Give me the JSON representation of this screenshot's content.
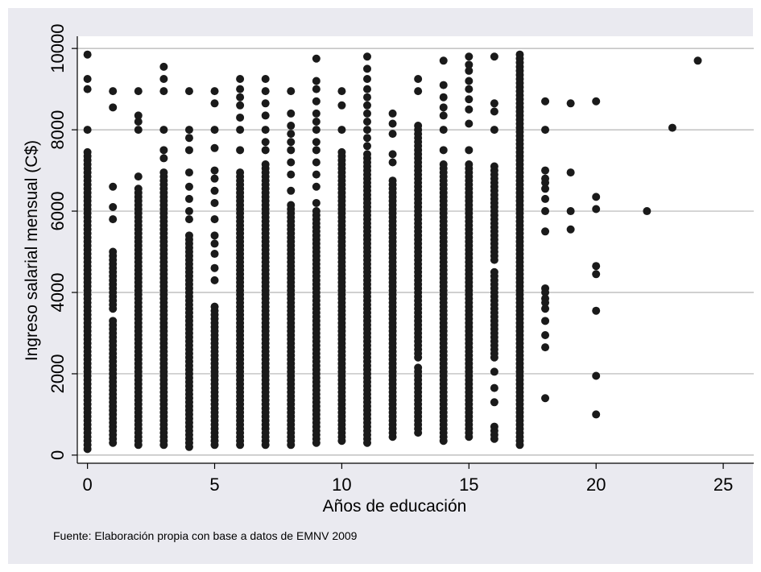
{
  "chart_data": {
    "type": "scatter",
    "xlabel": "Años de educación",
    "ylabel": "Ingreso salarial mensual (C$)",
    "note": "Fuente: Elaboración propia con base a datos de EMNV 2009",
    "xlim": [
      -0.4,
      26.2
    ],
    "ylim": [
      -200,
      10300
    ],
    "xticks": [
      0,
      5,
      10,
      15,
      20,
      25
    ],
    "yticks": [
      0,
      2000,
      4000,
      6000,
      8000,
      10000
    ],
    "grid": true,
    "legend": "none",
    "colors": {
      "outer_bg": "#eaeaf0",
      "plot_bg": "#ffffff",
      "grid": "#b4b4b4",
      "marker": "#1a1a1a"
    },
    "columns": [
      {
        "x": 0,
        "ranges": [
          [
            150,
            7500
          ]
        ],
        "points": [
          9850,
          9250,
          9000,
          8000
        ]
      },
      {
        "x": 1,
        "ranges": [
          [
            300,
            3300
          ],
          [
            3600,
            5000
          ]
        ],
        "points": [
          5800,
          6100,
          6600,
          8550,
          8950
        ]
      },
      {
        "x": 2,
        "ranges": [
          [
            250,
            6550
          ]
        ],
        "points": [
          6850,
          8000,
          8200,
          8350,
          8950
        ]
      },
      {
        "x": 3,
        "ranges": [
          [
            250,
            6950
          ]
        ],
        "points": [
          7300,
          7500,
          8000,
          8950,
          9250,
          9550
        ]
      },
      {
        "x": 4,
        "ranges": [
          [
            200,
            5400
          ]
        ],
        "points": [
          5800,
          6000,
          6300,
          6600,
          6950,
          7500,
          7800,
          8000,
          8950
        ]
      },
      {
        "x": 5,
        "ranges": [
          [
            250,
            3700
          ]
        ],
        "points": [
          4300,
          4600,
          4950,
          5200,
          5400,
          5800,
          6200,
          6500,
          6800,
          7000,
          7550,
          8000,
          8650,
          8950
        ]
      },
      {
        "x": 6,
        "ranges": [
          [
            250,
            7000
          ]
        ],
        "points": [
          7500,
          8000,
          8300,
          8600,
          8800,
          9000,
          9250
        ]
      },
      {
        "x": 7,
        "ranges": [
          [
            250,
            7200
          ]
        ],
        "points": [
          7500,
          7700,
          8000,
          8350,
          8650,
          8950,
          9250
        ]
      },
      {
        "x": 8,
        "ranges": [
          [
            250,
            6200
          ]
        ],
        "points": [
          6500,
          6900,
          7200,
          7500,
          7700,
          7900,
          8100,
          8400,
          8950
        ]
      },
      {
        "x": 9,
        "ranges": [
          [
            300,
            6000
          ]
        ],
        "points": [
          6200,
          6600,
          6900,
          7200,
          7500,
          7700,
          8000,
          8200,
          8400,
          8700,
          9000,
          9200,
          9750
        ]
      },
      {
        "x": 10,
        "ranges": [
          [
            350,
            7500
          ]
        ],
        "points": [
          8000,
          8600,
          8950
        ]
      },
      {
        "x": 11,
        "ranges": [
          [
            300,
            7400
          ]
        ],
        "points": [
          7600,
          7800,
          8000,
          8200,
          8400,
          8600,
          8800,
          9000,
          9250,
          9500,
          9800
        ]
      },
      {
        "x": 12,
        "ranges": [
          [
            450,
            6800
          ]
        ],
        "points": [
          7200,
          7400,
          7900,
          8150,
          8400
        ]
      },
      {
        "x": 13,
        "ranges": [
          [
            550,
            2150
          ],
          [
            2400,
            8100
          ]
        ],
        "points": [
          8950,
          9250
        ]
      },
      {
        "x": 14,
        "ranges": [
          [
            350,
            7200
          ]
        ],
        "points": [
          7500,
          8000,
          8350,
          8550,
          8800,
          9100,
          9700
        ]
      },
      {
        "x": 15,
        "ranges": [
          [
            450,
            7200
          ]
        ],
        "points": [
          7500,
          8150,
          8500,
          8750,
          9000,
          9200,
          9450,
          9600,
          9800
        ]
      },
      {
        "x": 16,
        "ranges": [
          [
            400,
            700
          ],
          [
            2400,
            4550
          ],
          [
            4800,
            7150
          ]
        ],
        "points": [
          1300,
          1650,
          2050,
          8000,
          8450,
          8650,
          9800
        ]
      },
      {
        "x": 17,
        "ranges": [
          [
            250,
            9900
          ]
        ],
        "points": []
      },
      {
        "x": 18,
        "ranges": [],
        "points": [
          1400,
          2650,
          2950,
          3300,
          3600,
          3750,
          3850,
          4000,
          4100,
          5500,
          6000,
          6300,
          6550,
          6700,
          6800,
          7000,
          8000,
          8700
        ]
      },
      {
        "x": 19,
        "ranges": [],
        "points": [
          5550,
          6000,
          6950,
          8650
        ]
      },
      {
        "x": 20,
        "ranges": [],
        "points": [
          1000,
          1950,
          3550,
          4450,
          4650,
          6050,
          6350,
          8700
        ]
      },
      {
        "x": 22,
        "ranges": [],
        "points": [
          6000
        ]
      },
      {
        "x": 23,
        "ranges": [],
        "points": [
          8050
        ]
      },
      {
        "x": 24,
        "ranges": [],
        "points": [
          9700
        ]
      }
    ]
  }
}
